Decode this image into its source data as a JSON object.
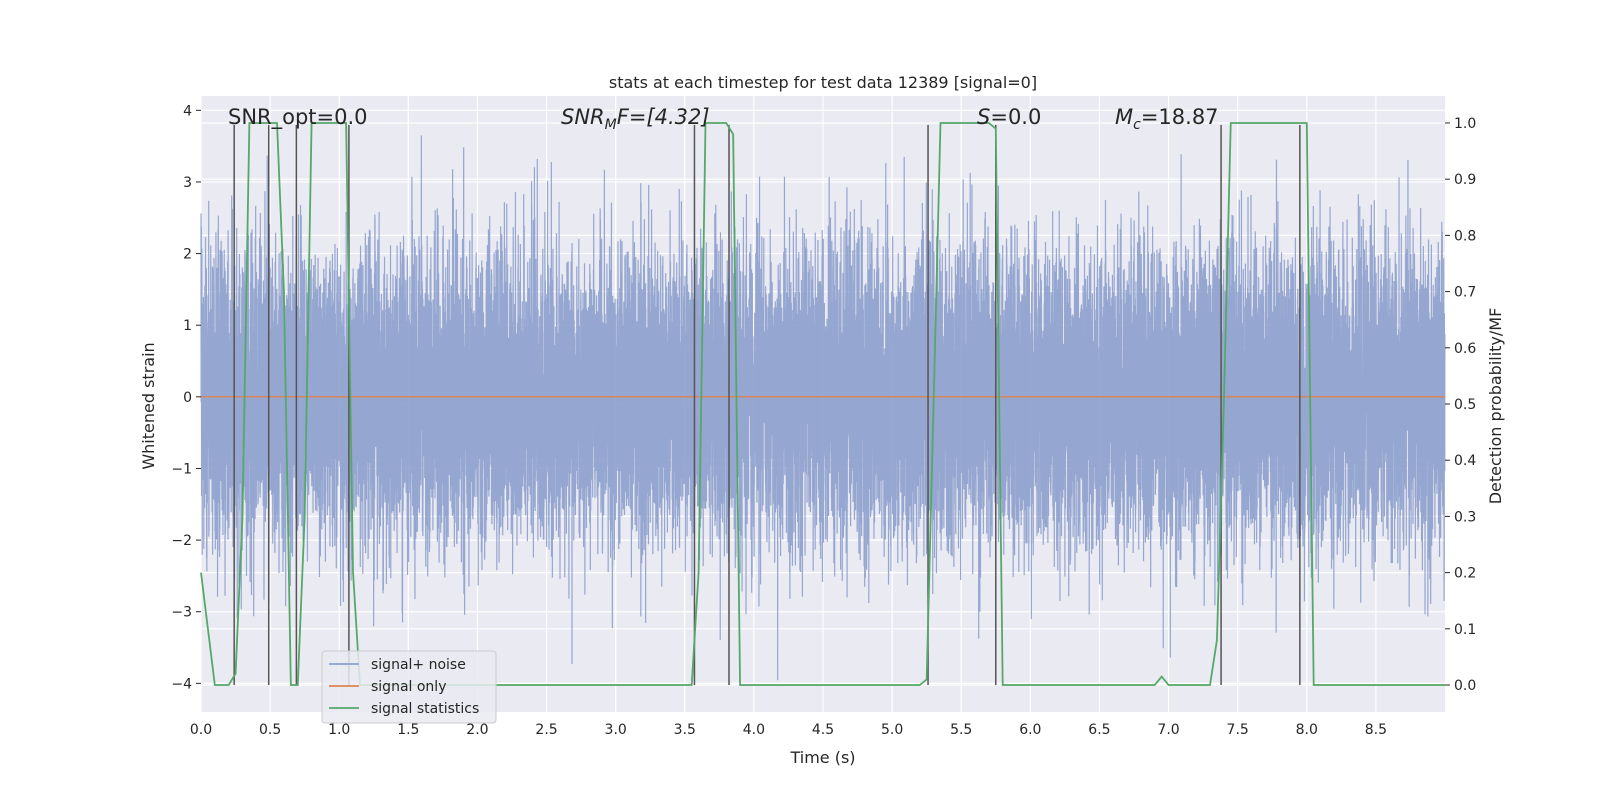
{
  "chart_data": {
    "type": "line",
    "title": "stats at each timestep for test data 12389 [signal=0]",
    "xlabel": "Time (s)",
    "ylabel": "Whitened strain",
    "y2label": "Detection probability/MF",
    "xlim": [
      0,
      9.0
    ],
    "ylim": [
      -4.4,
      4.2
    ],
    "y2lim": [
      -0.048,
      1.048
    ],
    "xticks": [
      0.0,
      0.5,
      1.0,
      1.5,
      2.0,
      2.5,
      3.0,
      3.5,
      4.0,
      4.5,
      5.0,
      5.5,
      6.0,
      6.5,
      7.0,
      7.5,
      8.0,
      8.5
    ],
    "xtick_labels": [
      "0.0",
      "0.5",
      "1.0",
      "1.5",
      "2.0",
      "2.5",
      "3.0",
      "3.5",
      "4.0",
      "4.5",
      "5.0",
      "5.5",
      "6.0",
      "6.5",
      "7.0",
      "7.5",
      "8.0",
      "8.5"
    ],
    "yticks": [
      4,
      3,
      2,
      1,
      0,
      -1,
      -2,
      -3,
      -4
    ],
    "ytick_labels": [
      "4",
      "3",
      "2",
      "1",
      "0",
      "−1",
      "−2",
      "−3",
      "−4"
    ],
    "y2ticks": [
      1.0,
      0.9,
      0.8,
      0.7,
      0.6,
      0.5,
      0.4,
      0.3,
      0.2,
      0.1,
      0.0
    ],
    "y2tick_labels": [
      "1.0",
      "0.9",
      "0.8",
      "0.7",
      "0.6",
      "0.5",
      "0.4",
      "0.3",
      "0.2",
      "0.1",
      "0.0"
    ],
    "annotations": {
      "snr_opt": "SNR_opt=0.0",
      "snr_mf_main": "SNR",
      "snr_mf_sub": "M",
      "snr_mf_rest": "F=[4.32]",
      "s_var": "S",
      "s_rest": "=0.0",
      "mc_var": "M",
      "mc_sub": "c",
      "mc_rest": "=18.87"
    },
    "legend": {
      "position": "lower-left",
      "entries": [
        "signal+ noise",
        "signal only",
        "signal statistics"
      ]
    },
    "colors": {
      "noise": "#8c9fcc",
      "signal": "#dd8452",
      "stats": "#55a868",
      "vlines": "#555555",
      "bg": "#eaeaf2",
      "grid": "#ffffff"
    },
    "series": [
      {
        "name": "signal+ noise",
        "kind": "noise",
        "seed": 12389,
        "sample_rate": 2048,
        "sigma": 1.0
      },
      {
        "name": "signal only",
        "x": [
          0.0,
          9.0
        ],
        "y": [
          0.0,
          0.0
        ]
      },
      {
        "name": "signal statistics",
        "x": [
          0.0,
          0.05,
          0.1,
          0.15,
          0.2,
          0.25,
          0.3,
          0.35,
          0.4,
          0.45,
          0.5,
          0.55,
          0.6,
          0.65,
          0.7,
          0.75,
          0.8,
          0.85,
          0.9,
          0.95,
          1.0,
          1.05,
          1.1,
          1.15,
          1.2,
          1.3,
          1.5,
          2.0,
          2.5,
          3.0,
          3.5,
          3.55,
          3.6,
          3.65,
          3.7,
          3.75,
          3.8,
          3.85,
          3.9,
          3.95,
          4.0,
          4.5,
          5.0,
          5.2,
          5.25,
          5.3,
          5.35,
          5.4,
          5.5,
          5.6,
          5.65,
          5.7,
          5.75,
          5.8,
          5.85,
          6.0,
          6.5,
          6.6,
          6.7,
          6.8,
          6.9,
          6.95,
          7.0,
          7.1,
          7.2,
          7.3,
          7.35,
          7.4,
          7.45,
          7.5,
          7.6,
          7.7,
          7.8,
          7.9,
          7.95,
          8.0,
          8.05,
          8.1,
          8.2,
          8.5,
          9.0
        ],
        "y": [
          0.2,
          0.1,
          0.0,
          0.0,
          0.0,
          0.02,
          0.3,
          1.0,
          1.0,
          1.0,
          1.0,
          1.0,
          0.7,
          0.0,
          0.0,
          0.3,
          1.0,
          1.0,
          1.0,
          1.0,
          1.0,
          1.0,
          0.2,
          0.0,
          0.0,
          0.0,
          0.0,
          0.0,
          0.0,
          0.0,
          0.0,
          0.0,
          0.2,
          1.0,
          1.0,
          1.0,
          1.0,
          0.98,
          0.0,
          0.0,
          0.0,
          0.0,
          0.0,
          0.0,
          0.01,
          0.5,
          1.0,
          1.0,
          1.0,
          1.0,
          1.0,
          1.0,
          0.99,
          0.0,
          0.0,
          0.0,
          0.0,
          0.0,
          0.0,
          0.0,
          0.0,
          0.015,
          0.0,
          0.0,
          0.0,
          0.0,
          0.08,
          0.5,
          1.0,
          1.0,
          1.0,
          1.0,
          1.0,
          1.0,
          1.0,
          1.0,
          0.0,
          0.0,
          0.0,
          0.0,
          0.0
        ]
      }
    ],
    "vlines_x": [
      0.24,
      0.49,
      0.69,
      1.07,
      3.57,
      3.82,
      5.26,
      5.75,
      7.38,
      7.95
    ]
  }
}
